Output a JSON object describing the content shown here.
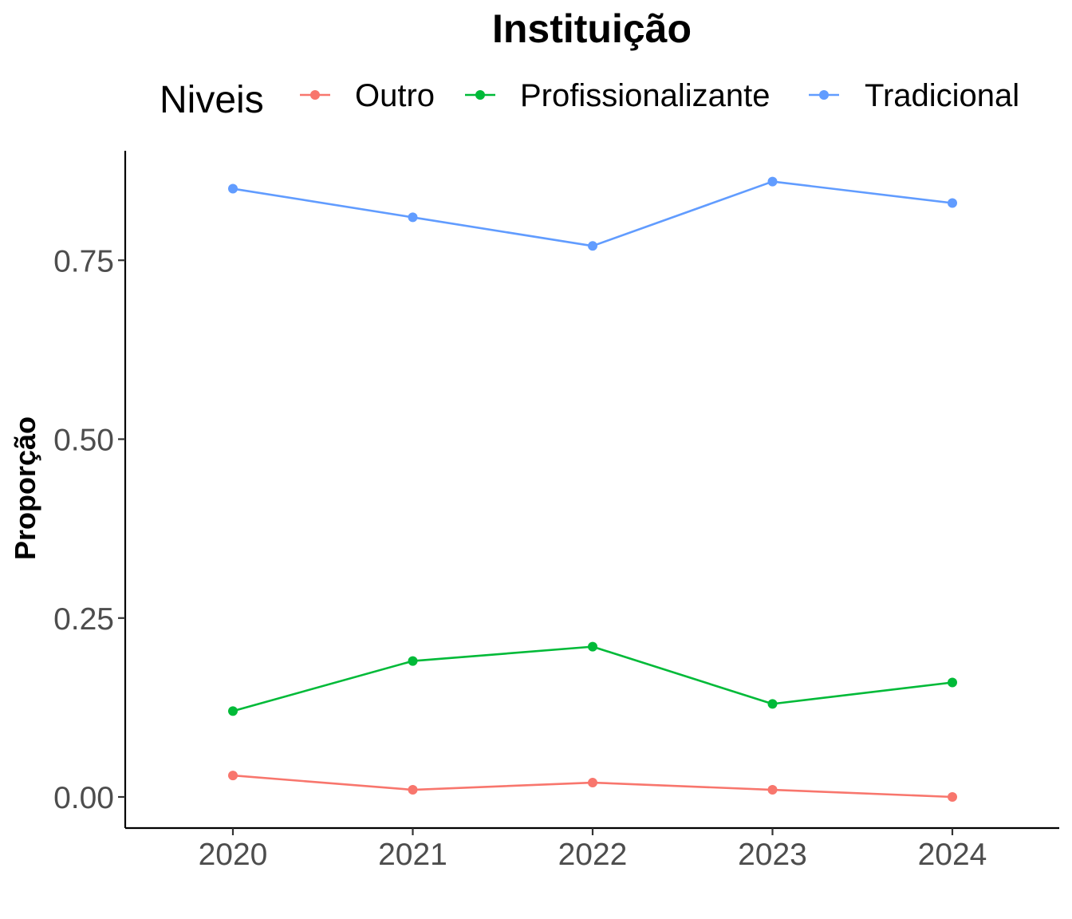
{
  "chart_data": {
    "type": "line",
    "title": "Instituição",
    "xlabel": "",
    "ylabel": "Proporção",
    "legend": {
      "title": "Niveis",
      "placement": "top"
    },
    "x": [
      "2020",
      "2021",
      "2022",
      "2023",
      "2024"
    ],
    "y_ticks": [
      "0.00",
      "0.25",
      "0.50",
      "0.75"
    ],
    "y_tick_values": [
      0,
      0.25,
      0.5,
      0.75
    ],
    "ylim": [
      -0.043,
      0.9
    ],
    "grid": false,
    "series": [
      {
        "name": "Outro",
        "color": "#f8766d",
        "values": [
          0.03,
          0.01,
          0.02,
          0.01,
          0.0
        ]
      },
      {
        "name": "Profissionalizante",
        "color": "#00ba38",
        "values": [
          0.12,
          0.19,
          0.21,
          0.13,
          0.16
        ]
      },
      {
        "name": "Tradicional",
        "color": "#619cff",
        "values": [
          0.85,
          0.81,
          0.77,
          0.86,
          0.83
        ]
      }
    ]
  }
}
